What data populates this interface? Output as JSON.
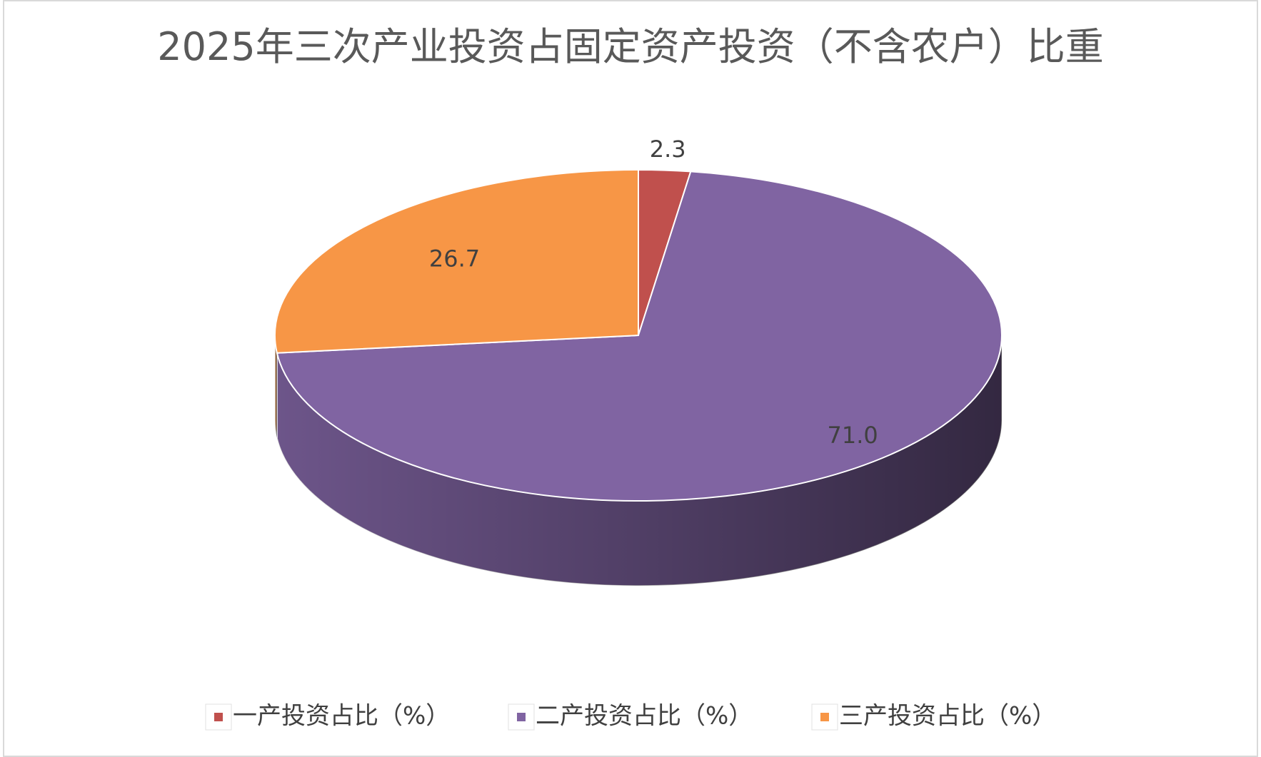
{
  "chart_data": {
    "type": "pie3d",
    "title": "2025年三次产业投资占固定资产投资（不含农户）比重",
    "categories": [
      "一产投资占比（%）",
      "二产投资占比（%）",
      "三产投资占比（%）"
    ],
    "values": [
      2.3,
      71.0,
      26.7
    ],
    "value_labels": [
      "2.3",
      "71.0",
      "26.7"
    ],
    "colors": [
      "#c0504d",
      "#8064a2",
      "#f79646"
    ],
    "legend": "bottom"
  }
}
